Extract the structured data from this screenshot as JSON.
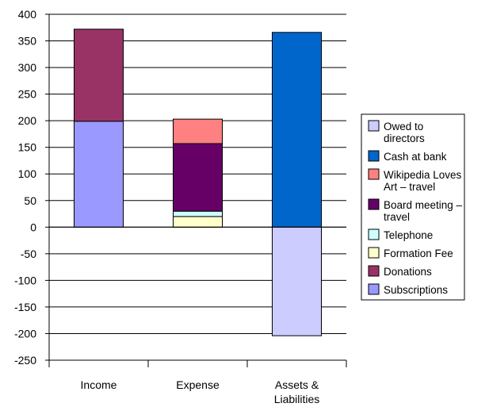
{
  "chart_data": {
    "type": "bar",
    "stacked": true,
    "categories": [
      "Income",
      "Expense",
      "Assets &\nLiabilities"
    ],
    "ylim": [
      -250,
      400
    ],
    "yticks": [
      400,
      350,
      300,
      250,
      200,
      150,
      100,
      50,
      0,
      -50,
      -100,
      -150,
      -200,
      -250
    ],
    "grid": true,
    "legend_position": "right",
    "series": [
      {
        "name": "Subscriptions",
        "color": "#9999ff",
        "values": [
          199,
          0,
          0
        ]
      },
      {
        "name": "Donations",
        "color": "#993366",
        "values": [
          173,
          0,
          0
        ]
      },
      {
        "name": "Formation Fee",
        "color": "#ffffcc",
        "values": [
          0,
          20,
          0
        ]
      },
      {
        "name": "Telephone",
        "color": "#ccffff",
        "values": [
          0,
          10,
          0
        ]
      },
      {
        "name": "Board meeting – travel",
        "color": "#660066",
        "values": [
          0,
          127,
          0
        ]
      },
      {
        "name": "Wikipedia Loves Art – travel",
        "color": "#ff8080",
        "values": [
          0,
          46,
          0
        ]
      },
      {
        "name": "Cash at bank",
        "color": "#0066cc",
        "values": [
          0,
          0,
          366
        ]
      },
      {
        "name": "Owed to directors",
        "color": "#ccccff",
        "values": [
          0,
          0,
          -204
        ]
      }
    ],
    "legend_order": [
      "Owed to directors",
      "Cash at bank",
      "Wikipedia Loves Art – travel",
      "Board meeting – travel",
      "Telephone",
      "Formation Fee",
      "Donations",
      "Subscriptions"
    ]
  }
}
